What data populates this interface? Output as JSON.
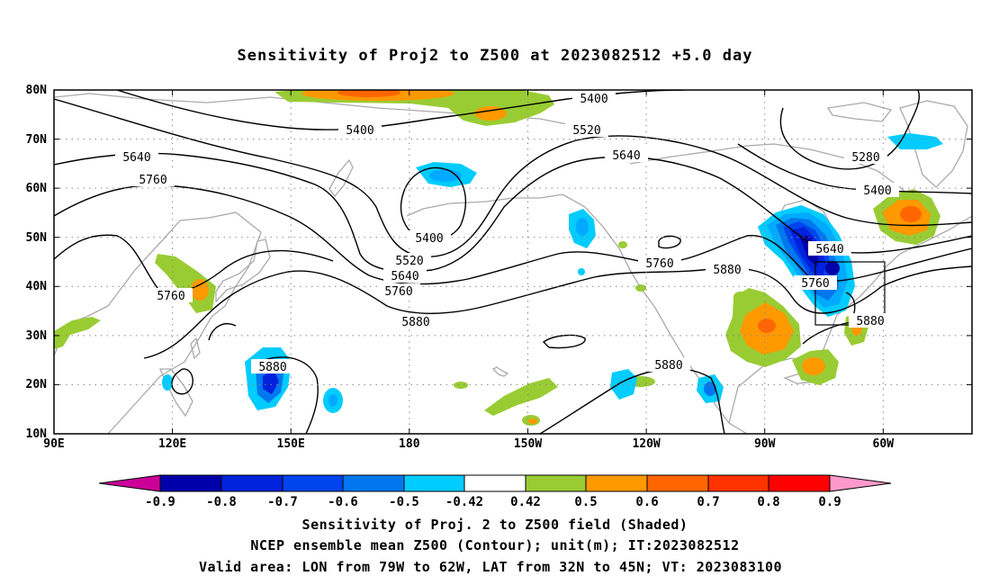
{
  "title": "Sensitivity of Proj2 to Z500 at 2023082512 +5.0 day",
  "map": {
    "lat_ticks": [
      "80N",
      "70N",
      "60N",
      "50N",
      "40N",
      "30N",
      "20N",
      "10N"
    ],
    "lon_ticks": [
      "90E",
      "120E",
      "150E",
      "180",
      "150W",
      "120W",
      "90W",
      "60W"
    ],
    "contour_labels": [
      "5400",
      "5400",
      "5400",
      "5400",
      "5520",
      "5520",
      "5640",
      "5640",
      "5640",
      "5760",
      "5760",
      "5760",
      "5760",
      "5880",
      "5880",
      "5880",
      "5880",
      "5880",
      "5280"
    ],
    "valid_box": {
      "lon": [
        -79,
        -62
      ],
      "lat": [
        32,
        45
      ]
    },
    "colors": {
      "neg_extreme": "#cc0099",
      "neg_09": "#0000aa",
      "neg_08": "#0022dd",
      "neg_07": "#0044ee",
      "neg_06": "#0077ee",
      "neg_05": "#00aaff",
      "neg_042": "#00ccff",
      "pos_042": "#99cc33",
      "pos_05": "#ff9900",
      "pos_06": "#ff6600",
      "pos_07": "#ff3300",
      "pos_08": "#ff0000",
      "pos_extreme": "#ff99cc",
      "coast": "#aaaaaa"
    }
  },
  "colorbar": {
    "labels": [
      "-0.9",
      "-0.8",
      "-0.7",
      "-0.6",
      "-0.5",
      "-0.42",
      "0.42",
      "0.5",
      "0.6",
      "0.7",
      "0.8",
      "0.9"
    ]
  },
  "caption": {
    "line1": "Sensitivity of Proj. 2 to Z500 field (Shaded)",
    "line2": "NCEP ensemble mean Z500 (Contour); unit(m); IT:2023082512",
    "line3": "Valid area: LON from 79W to 62W, LAT from 32N to 45N; VT: 2023083100"
  }
}
